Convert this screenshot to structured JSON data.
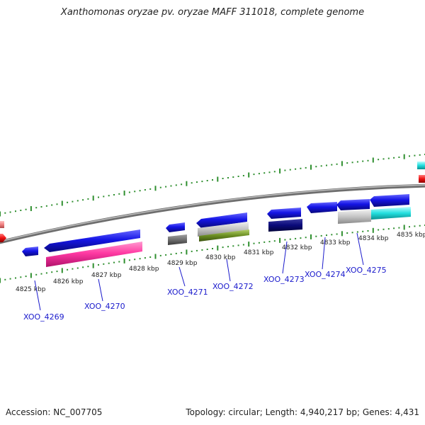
{
  "title": "Xanthomonas oryzae pv. oryzae MAFF 311018, complete genome",
  "accession": "Accession: NC_007705",
  "genome_info": "Topology: circular; Length: 4,940,217 bp; Genes: 4,431",
  "colors": {
    "backbone": "#8c8c8c",
    "tick": "#2f8f2f",
    "label_blue": "#1a1acc",
    "gene_blue": "#1515e6",
    "gene_navy": "#0a0a7a",
    "gene_pink": "#ff3aa3",
    "gene_gray": "#6e6e6e",
    "gene_lightgray": "#c4c4c4",
    "gene_olive": "#6b8e23",
    "gene_cyan": "#22dede",
    "gene_red": "#ee1111",
    "gene_salmon": "#f08080"
  },
  "kbp_labels": [
    "4825 kbp",
    "4826 kbp",
    "4827 kbp",
    "4828 kbp",
    "4829 kbp",
    "4830 kbp",
    "4831 kbp",
    "4832 kbp",
    "4833 kbp",
    "4834 kbp",
    "4835 kbp"
  ],
  "gene_labels": [
    "XOO_4269",
    "XOO_4270",
    "XOO_4271",
    "XOO_4272",
    "XOO_4273",
    "XOO_4274",
    "XOO_4275"
  ]
}
